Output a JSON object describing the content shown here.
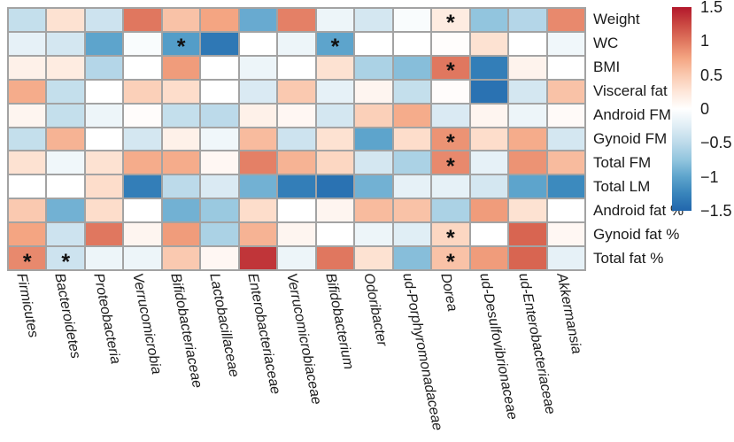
{
  "chart_data": {
    "type": "heatmap",
    "title": "",
    "rows": [
      "Weight",
      "WC",
      "BMI",
      "Visceral fat",
      "Android FM",
      "Gynoid FM",
      "Total FM",
      "Total LM",
      "Android fat %",
      "Gynoid fat %",
      "Total fat %"
    ],
    "columns": [
      "Firmicutes",
      "Bacteroidetes",
      "Proteobacteria",
      "Verrucomicrobia",
      "Bifidobacteriaceae",
      "Lactobacillaceae",
      "Enterobacteriaceae",
      "Verrucomicrobiaceae",
      "Bifidobacterium",
      "Odoribacter",
      "ud-Porphyromonadaceae",
      "Dorea",
      "ud-Desulfovibrionaceae",
      "ud-Enterobacteriaceae",
      "Akkermansia"
    ],
    "values": [
      [
        -0.45,
        0.3,
        -0.4,
        1.0,
        0.55,
        0.75,
        -0.95,
        0.95,
        -0.15,
        -0.35,
        -0.05,
        0.2,
        -0.75,
        -0.55,
        0.9
      ],
      [
        -0.2,
        -0.35,
        -1.0,
        -0.05,
        -1.05,
        -1.35,
        0.0,
        -0.15,
        -1.0,
        0.0,
        0.0,
        0.02,
        0.3,
        0.0,
        -0.12
      ],
      [
        0.15,
        0.2,
        -0.55,
        0.0,
        0.8,
        0.0,
        -0.15,
        0.0,
        0.3,
        -0.6,
        -0.8,
        1.0,
        -1.3,
        0.12,
        0.0
      ],
      [
        0.7,
        -0.45,
        0.0,
        0.45,
        0.35,
        0.0,
        -0.3,
        0.5,
        -0.2,
        0.1,
        -0.45,
        0.03,
        -1.4,
        -0.35,
        0.55
      ],
      [
        0.1,
        -0.45,
        -0.15,
        0.03,
        -0.45,
        -0.5,
        0.15,
        0.08,
        -0.35,
        0.45,
        0.7,
        -0.3,
        0.1,
        -0.15,
        0.05
      ],
      [
        -0.45,
        0.65,
        0.0,
        -0.35,
        0.15,
        -0.12,
        0.6,
        -0.4,
        0.3,
        -1.0,
        0.35,
        0.85,
        0.35,
        0.7,
        -0.35
      ],
      [
        0.3,
        -0.12,
        0.3,
        0.7,
        0.7,
        0.08,
        0.95,
        0.65,
        0.4,
        -0.35,
        -0.6,
        0.9,
        -0.2,
        0.85,
        0.6
      ],
      [
        0.0,
        0.0,
        0.35,
        -1.3,
        -0.5,
        -0.3,
        -0.9,
        -1.3,
        -1.4,
        -0.9,
        -0.2,
        -0.2,
        -0.35,
        -1.0,
        -1.2
      ],
      [
        0.5,
        -0.9,
        0.35,
        0.0,
        -0.9,
        -0.7,
        0.35,
        0.0,
        0.1,
        0.6,
        0.55,
        -0.6,
        0.8,
        0.3,
        0.0
      ],
      [
        0.75,
        -0.4,
        1.0,
        0.1,
        0.8,
        -0.6,
        0.65,
        0.1,
        0.0,
        -0.15,
        -0.25,
        0.4,
        0.0,
        1.1,
        0.08
      ],
      [
        0.9,
        -0.4,
        -0.15,
        -0.15,
        0.5,
        0.08,
        1.35,
        -0.15,
        1.0,
        0.3,
        -0.8,
        0.55,
        0.8,
        1.1,
        -0.2
      ]
    ],
    "significance_marker": "*",
    "significant_cells": [
      [
        0,
        11
      ],
      [
        1,
        4
      ],
      [
        1,
        8
      ],
      [
        2,
        11
      ],
      [
        5,
        11
      ],
      [
        6,
        11
      ],
      [
        9,
        11
      ],
      [
        10,
        0
      ],
      [
        10,
        1
      ],
      [
        10,
        11
      ]
    ],
    "colorbar": {
      "position": "right",
      "min": -1.5,
      "max": 1.5,
      "ticks": [
        "1.5",
        "1",
        "0.5",
        "0",
        "−0.5",
        "−1",
        "−1.5"
      ],
      "tick_values": [
        1.5,
        1,
        0.5,
        0,
        -0.5,
        -1,
        -1.5
      ],
      "palette": "RdBu",
      "color_positive_max": "#b2182b",
      "color_zero": "#ffffff",
      "color_negative_max": "#2166ac"
    },
    "grid_line_color": "#a3a3a3",
    "column_labels_style": "italic, rotated",
    "legend_position": "right"
  }
}
